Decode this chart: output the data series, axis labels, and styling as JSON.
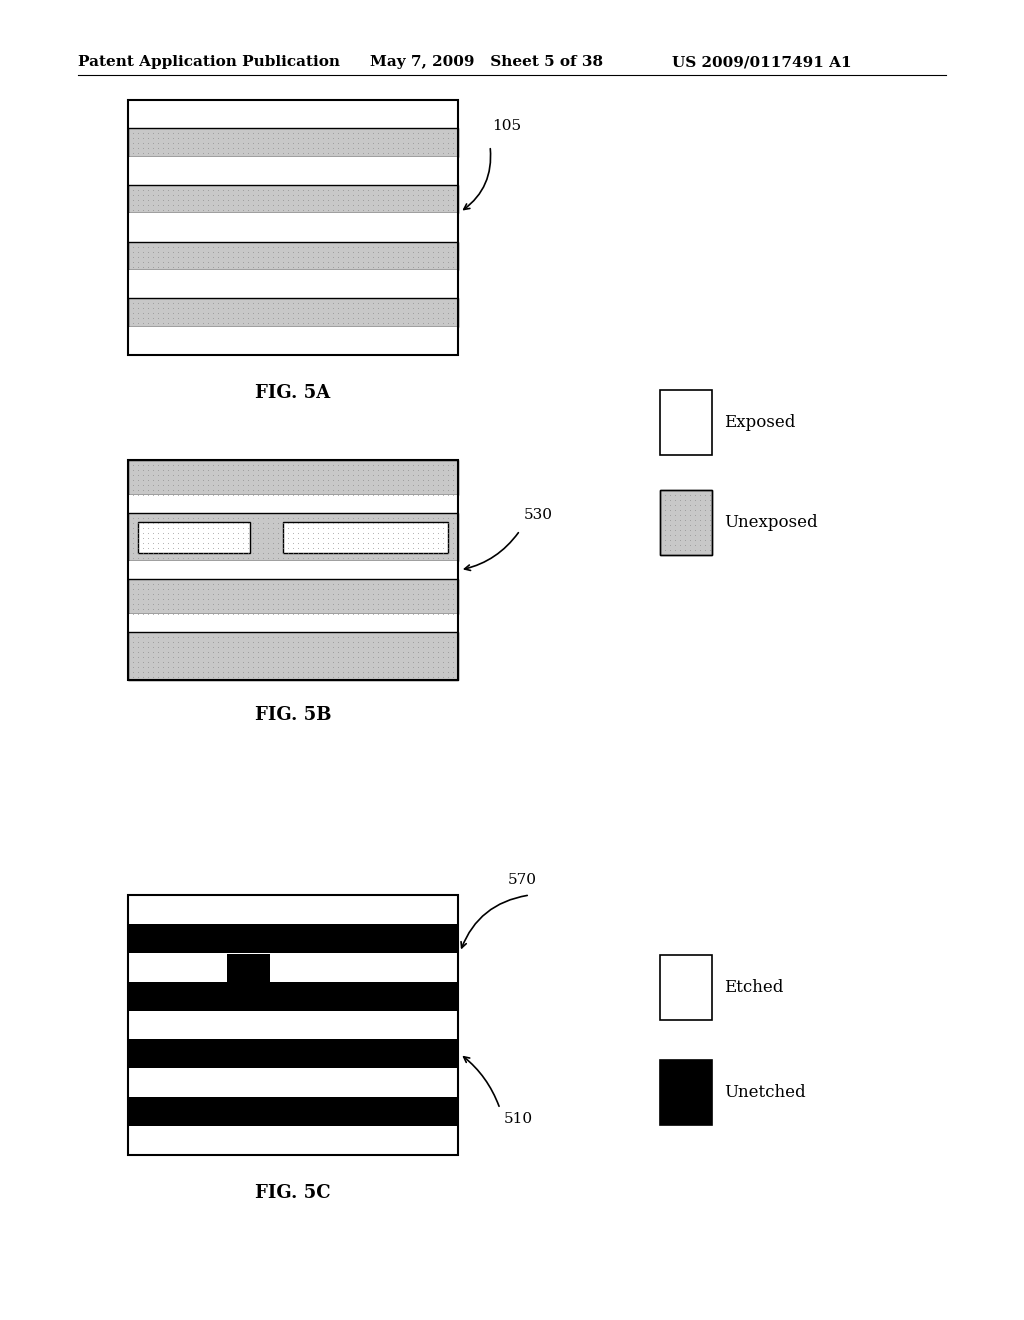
{
  "bg_color": "#ffffff",
  "header_left": "Patent Application Publication",
  "header_mid": "May 7, 2009   Sheet 5 of 38",
  "header_right": "US 2009/0117491 A1",
  "fig5a_label": "FIG. 5A",
  "fig5b_label": "FIG. 5B",
  "fig5c_label": "FIG. 5C",
  "label_105": "105",
  "label_530": "530",
  "label_570": "570",
  "label_510": "510",
  "exposed_label": "Exposed",
  "unexposed_label": "Unexposed",
  "etched_label": "Etched",
  "unetched_label": "Unetched"
}
